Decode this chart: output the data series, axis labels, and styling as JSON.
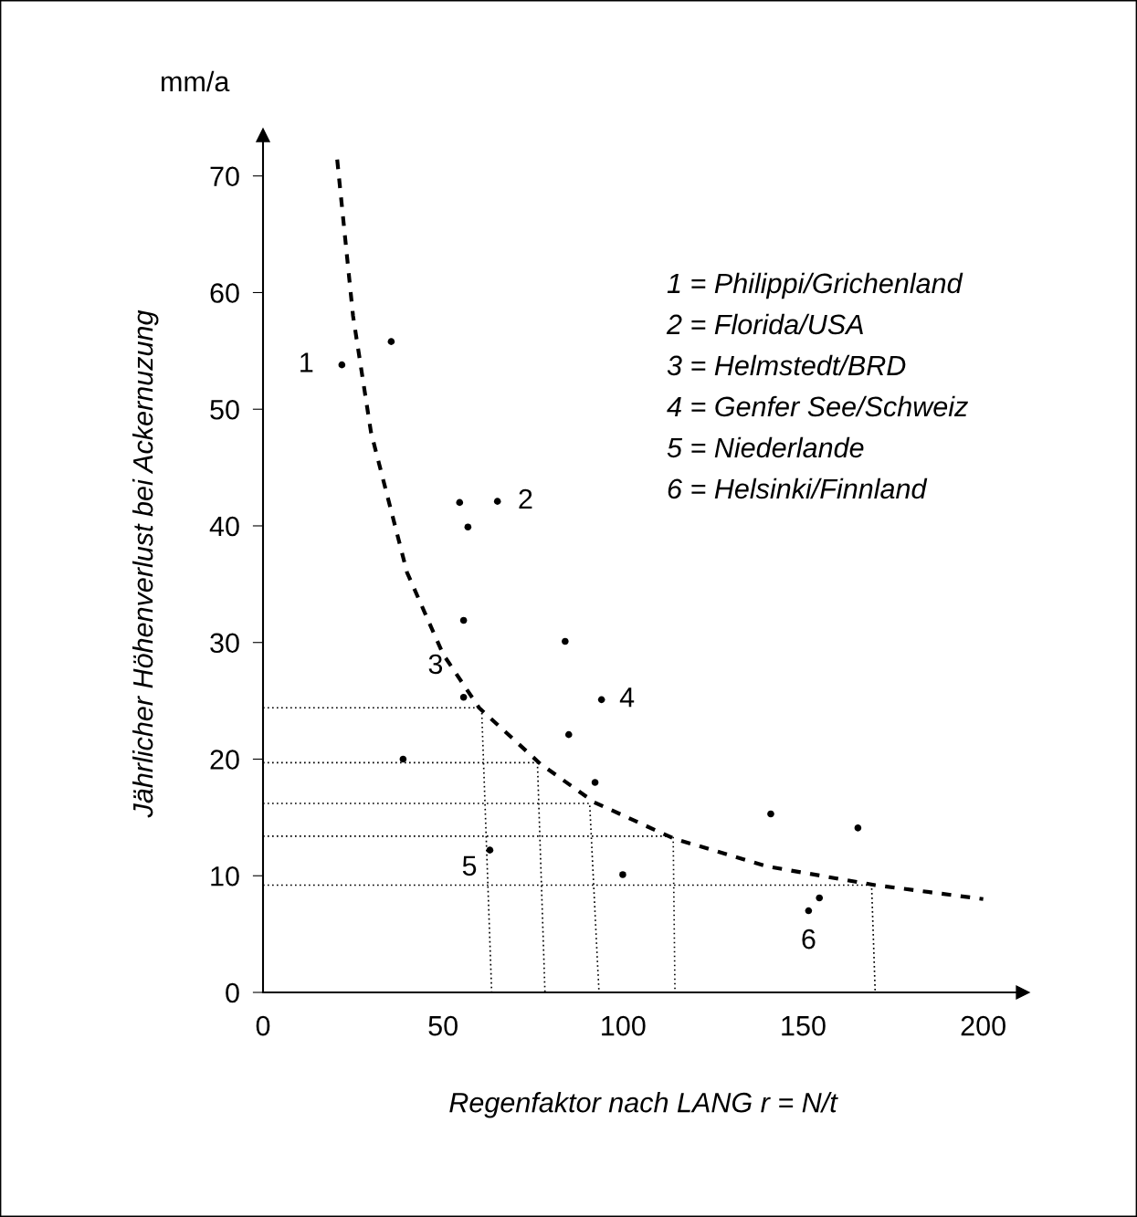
{
  "chart_data": {
    "type": "scatter",
    "xlabel": "Regenfaktor nach LANG r = N/t",
    "ylabel": "Jährlicher Höhenverlust bei Ackernuzung",
    "xlim": [
      0,
      211
    ],
    "ylim": [
      0,
      73.5
    ],
    "xticks": [
      0,
      50,
      100,
      150,
      200
    ],
    "yticks": [
      0,
      10,
      20,
      30,
      40,
      50,
      60,
      70
    ],
    "grid": false,
    "series": [
      {
        "color": "#000000",
        "marker": "circle",
        "x": [
          21.9,
          35.6,
          54.6,
          65.1,
          56.9,
          55.7,
          83.9,
          94.0,
          55.7,
          38.9,
          84.9,
          92.2,
          63.0,
          99.9,
          141,
          165.2,
          151.5,
          154.5
        ],
        "values": [
          53.8,
          55.8,
          42.0,
          42.1,
          39.9,
          31.9,
          30.1,
          25.1,
          25.3,
          20.0,
          22.1,
          18.0,
          12.2,
          10.1,
          15.3,
          14.1,
          7.0,
          8.1
        ]
      },
      {
        "type": "line",
        "color": "#000000",
        "line_style": "dashed",
        "x": [
          20.6,
          25,
          30,
          40,
          50,
          60,
          77,
          92,
          114,
          140,
          170,
          200
        ],
        "values": [
          71.4,
          58,
          48,
          36,
          29,
          24.4,
          19.6,
          16.3,
          13.2,
          10.8,
          9.2,
          8
        ]
      },
      {
        "type": "line",
        "color": "#000000",
        "line_style": "dotted",
        "x": [
          0,
          60.7,
          63.5
        ],
        "values": [
          24.4,
          24.4,
          0
        ]
      },
      {
        "type": "line",
        "color": "#000000",
        "line_style": "dotted",
        "x": [
          0,
          76.2,
          78.3
        ],
        "values": [
          19.7,
          19.7,
          0
        ]
      },
      {
        "type": "line",
        "color": "#000000",
        "line_style": "dotted",
        "x": [
          0,
          90.7,
          93.3
        ],
        "values": [
          16.2,
          16.2,
          0
        ]
      },
      {
        "type": "line",
        "color": "#000000",
        "line_style": "dotted",
        "x": [
          0,
          113.9,
          114.4
        ],
        "values": [
          13.4,
          13.4,
          0
        ]
      },
      {
        "type": "line",
        "color": "#000000",
        "line_style": "dotted",
        "x": [
          0,
          169,
          170
        ],
        "values": [
          9.2,
          9.2,
          0
        ]
      }
    ],
    "annotations": [
      "mm/a",
      "1 = Philippi/Grichenland",
      "2 = Florida/USA",
      "3 = Helmstedt/BRD",
      "4 = Genfer See/Schweiz",
      "5 = Niederlande",
      "6 = Helsinki/Finnland",
      {
        "text": "1",
        "x": 21.9,
        "y": 53.8
      },
      {
        "text": "2",
        "x": 65.1,
        "y": 42.1
      },
      {
        "text": "3",
        "x": 55.7,
        "y": 25.3
      },
      {
        "text": "4",
        "x": 94.0,
        "y": 25.1
      },
      {
        "text": "5",
        "x": 63.0,
        "y": 12.2
      },
      {
        "text": "6",
        "x": 151.5,
        "y": 7.0
      }
    ]
  }
}
